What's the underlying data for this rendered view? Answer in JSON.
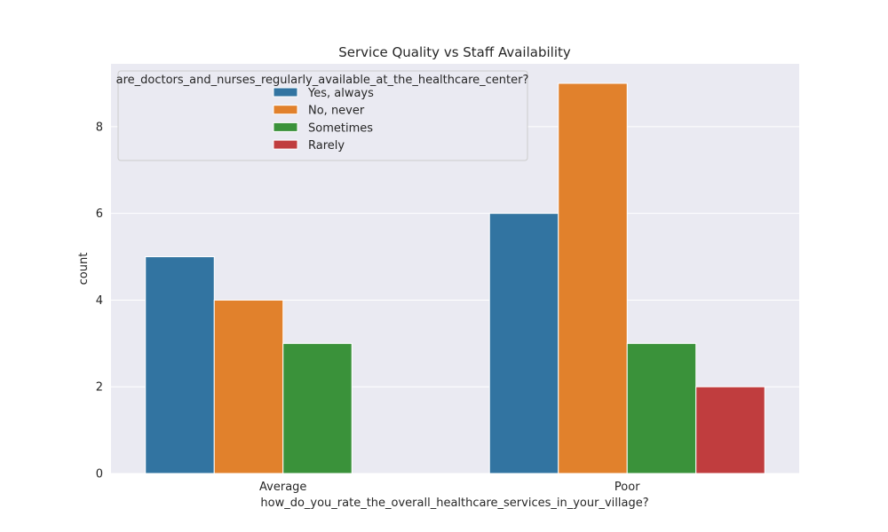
{
  "chart_data": {
    "type": "bar",
    "title": "Service Quality vs Staff Availability",
    "xlabel": "how_do_you_rate_the_overall_healthcare_services_in_your_village?",
    "ylabel": "count",
    "categories": [
      "Average",
      "Poor"
    ],
    "series": [
      {
        "name": "Yes, always",
        "color": "#3274a1",
        "values": [
          5,
          6
        ]
      },
      {
        "name": "No, never",
        "color": "#e1812c",
        "values": [
          4,
          9
        ]
      },
      {
        "name": "Sometimes",
        "color": "#3a923a",
        "values": [
          3,
          3
        ]
      },
      {
        "name": "Rarely",
        "color": "#c03d3e",
        "values": [
          null,
          2
        ]
      }
    ],
    "ylim": [
      0,
      9.45
    ],
    "yticks": [
      0,
      2,
      4,
      6,
      8
    ],
    "legend": {
      "title": "are_doctors_and_nurses_regularly_available_at_the_healthcare_center?",
      "placement": "top-left"
    },
    "grid": true,
    "background_color": "#eaeaf2"
  }
}
